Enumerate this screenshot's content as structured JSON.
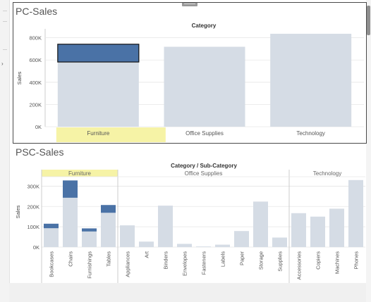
{
  "pc": {
    "title": "PC-Sales",
    "chart_data": {
      "type": "bar",
      "title": "Category",
      "ylabel": "Sales",
      "categories": [
        "Furniture",
        "Office Supplies",
        "Technology"
      ],
      "values": [
        742000,
        719000,
        836000
      ],
      "selected_category": "Furniture",
      "selected_value": 160000,
      "yticks": [
        "0K",
        "200K",
        "400K",
        "600K",
        "800K"
      ],
      "ylim": [
        0,
        880000
      ]
    }
  },
  "psc": {
    "title": "PSC-Sales",
    "chart_data": {
      "type": "bar",
      "title": "Category / Sub-Category",
      "ylabel": "Sales",
      "groups": [
        {
          "name": "Furniture",
          "highlighted": true,
          "items": [
            {
              "name": "Bookcases",
              "value": 115000,
              "selected": 22000
            },
            {
              "name": "Chairs",
              "value": 328000,
              "selected": 85000
            },
            {
              "name": "Furnishings",
              "value": 92000,
              "selected": 15000
            },
            {
              "name": "Tables",
              "value": 207000,
              "selected": 38000
            }
          ]
        },
        {
          "name": "Office Supplies",
          "highlighted": false,
          "items": [
            {
              "name": "Appliances",
              "value": 107000
            },
            {
              "name": "Art",
              "value": 27000
            },
            {
              "name": "Binders",
              "value": 204000
            },
            {
              "name": "Envelopes",
              "value": 16000
            },
            {
              "name": "Fasteners",
              "value": 3000
            },
            {
              "name": "Labels",
              "value": 12000
            },
            {
              "name": "Paper",
              "value": 79000
            },
            {
              "name": "Storage",
              "value": 224000
            },
            {
              "name": "Supplies",
              "value": 47000
            }
          ]
        },
        {
          "name": "Technology",
          "highlighted": false,
          "items": [
            {
              "name": "Accessories",
              "value": 167000
            },
            {
              "name": "Copiers",
              "value": 150000
            },
            {
              "name": "Machines",
              "value": 189000
            },
            {
              "name": "Phones",
              "value": 330000
            }
          ]
        }
      ],
      "yticks": [
        "0K",
        "100K",
        "200K",
        "300K"
      ],
      "ylim": [
        0,
        350000
      ]
    }
  },
  "colors": {
    "bar_base": "#d5dce5",
    "bar_selected": "#4a72a6",
    "highlight": "#f6f3a6",
    "grid": "#e6e6e6",
    "axis": "#cccccc"
  }
}
